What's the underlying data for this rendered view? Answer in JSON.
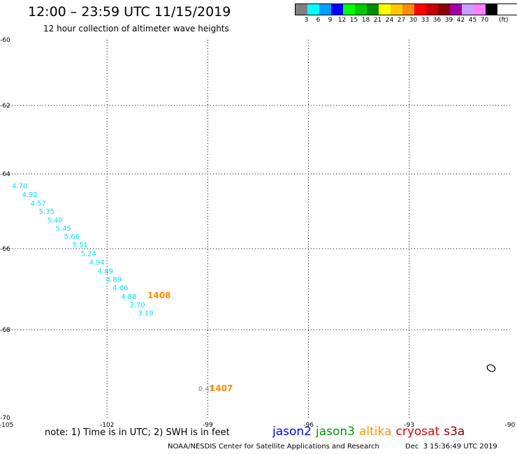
{
  "header": {
    "title": "12:00 – 23:59 UTC 11/15/2019",
    "subtitle": "12 hour collection of altimeter wave heights"
  },
  "legend": {
    "colors": [
      "#808080",
      "#00ffff",
      "#00a0ff",
      "#0000ff",
      "#00ff00",
      "#00c800",
      "#008c00",
      "#ffff00",
      "#ffc800",
      "#ff8c00",
      "#ff0000",
      "#c80000",
      "#8c0000",
      "#a000a0",
      "#c8a0ff",
      "#ff80ff",
      "#000000"
    ],
    "labels": [
      "3",
      "6",
      "9",
      "12",
      "15",
      "18",
      "21",
      "24",
      "27",
      "30",
      "33",
      "36",
      "39",
      "42",
      "45",
      "70"
    ],
    "unit": "(ft)"
  },
  "map": {
    "lon_range": [
      -105,
      -90
    ],
    "lat_range": [
      -70,
      -60
    ],
    "lon_ticks": [
      "-105",
      "-102",
      "-99",
      "-96",
      "-93",
      "-90"
    ],
    "lat_ticks": [
      "-60",
      "-62",
      "-64",
      "-66",
      "-68",
      "-70"
    ],
    "grid": true,
    "projection": "mercator",
    "swh_points": [
      {
        "lon": -104.6,
        "lat": -64.38,
        "value": "4.70",
        "color": "#00e0ff"
      },
      {
        "lon": -104.3,
        "lat": -64.62,
        "value": "4.92",
        "color": "#00e0ff"
      },
      {
        "lon": -104.05,
        "lat": -64.85,
        "value": "4.57",
        "color": "#00e0ff"
      },
      {
        "lon": -103.8,
        "lat": -65.07,
        "value": "5.35",
        "color": "#00e0ff"
      },
      {
        "lon": -103.55,
        "lat": -65.3,
        "value": "5.40",
        "color": "#00e0ff"
      },
      {
        "lon": -103.3,
        "lat": -65.52,
        "value": "5.45",
        "color": "#00e0ff"
      },
      {
        "lon": -103.05,
        "lat": -65.74,
        "value": "5.66",
        "color": "#00e0ff"
      },
      {
        "lon": -102.8,
        "lat": -65.96,
        "value": "5.51",
        "color": "#00e0ff"
      },
      {
        "lon": -102.55,
        "lat": -66.18,
        "value": "5.24",
        "color": "#00e0ff"
      },
      {
        "lon": -102.3,
        "lat": -66.4,
        "value": "4.94",
        "color": "#00e0ff"
      },
      {
        "lon": -102.05,
        "lat": -66.61,
        "value": "4.89",
        "color": "#00e0ff"
      },
      {
        "lon": -101.8,
        "lat": -66.82,
        "value": "4.89",
        "color": "#00e0ff"
      },
      {
        "lon": -101.6,
        "lat": -67.03,
        "value": "4.06",
        "color": "#00e0ff"
      },
      {
        "lon": -101.35,
        "lat": -67.24,
        "value": "4.88",
        "color": "#00e0ff"
      },
      {
        "lon": -101.1,
        "lat": -67.45,
        "value": "3.70",
        "color": "#00e0ff"
      },
      {
        "lon": -100.85,
        "lat": -67.65,
        "value": "3.19",
        "color": "#00e0ff"
      },
      {
        "lon": -99.05,
        "lat": -69.4,
        "value": "0.41",
        "color": "#808080"
      }
    ],
    "pass_labels": [
      {
        "lon": -100.45,
        "lat": -67.22,
        "value": "1408",
        "color": "#ff8c00"
      },
      {
        "lon": -98.6,
        "lat": -69.4,
        "value": "1407",
        "color": "#ff8c00"
      }
    ]
  },
  "note": "note: 1) Time is in UTC; 2) SWH is in feet",
  "satellites": [
    {
      "name": "jason2",
      "color": "#0000ff"
    },
    {
      "name": "jason3",
      "color": "#009600"
    },
    {
      "name": "altika",
      "color": "#ff9600"
    },
    {
      "name": "cryosat",
      "color": "#e60000"
    },
    {
      "name": "s3a",
      "color": "#8c0000"
    }
  ],
  "footer": {
    "credit": "NOAA/NESDIS Center for Satellite Applications and Research",
    "timestamp": "Dec  3 15:36:49 UTC 2019"
  }
}
